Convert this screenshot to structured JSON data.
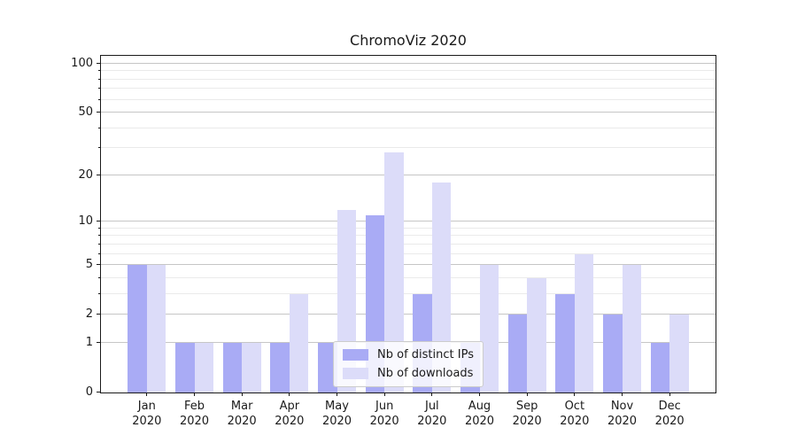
{
  "chart_data": {
    "type": "bar",
    "title": "ChromoViz 2020",
    "categories": [
      "Jan 2020",
      "Feb 2020",
      "Mar 2020",
      "Apr 2020",
      "May 2020",
      "Jun 2020",
      "Jul 2020",
      "Aug 2020",
      "Sep 2020",
      "Oct 2020",
      "Nov 2020",
      "Dec 2020"
    ],
    "series": [
      {
        "name": "Nb of distinct IPs",
        "values": [
          5,
          1,
          1,
          1,
          1,
          11,
          3,
          1,
          2,
          3,
          2,
          1
        ]
      },
      {
        "name": "Nb of downloads",
        "values": [
          5,
          1,
          1,
          3,
          12,
          28,
          18,
          5,
          4,
          6,
          5,
          2
        ]
      }
    ],
    "xlabel": "",
    "ylabel": "",
    "y_axis": {
      "scale": "log1p",
      "major_ticks": [
        0,
        1,
        2,
        5,
        10,
        20,
        50,
        100
      ],
      "minor_ticks": [
        3,
        4,
        6,
        7,
        8,
        9,
        30,
        40,
        60,
        70,
        80,
        90
      ],
      "ylim": [
        0,
        112
      ]
    },
    "grid": true,
    "legend_position": "lower center"
  },
  "colors": {
    "ips": "#a9abf5",
    "downloads": "#dcdcf9",
    "grid_major": "#c6c6c6",
    "grid_minor": "#eaeaea",
    "axis": "#1a1a1a",
    "legend_border": "#cccccc",
    "legend_bg": "rgba(255,255,255,0.82)"
  }
}
